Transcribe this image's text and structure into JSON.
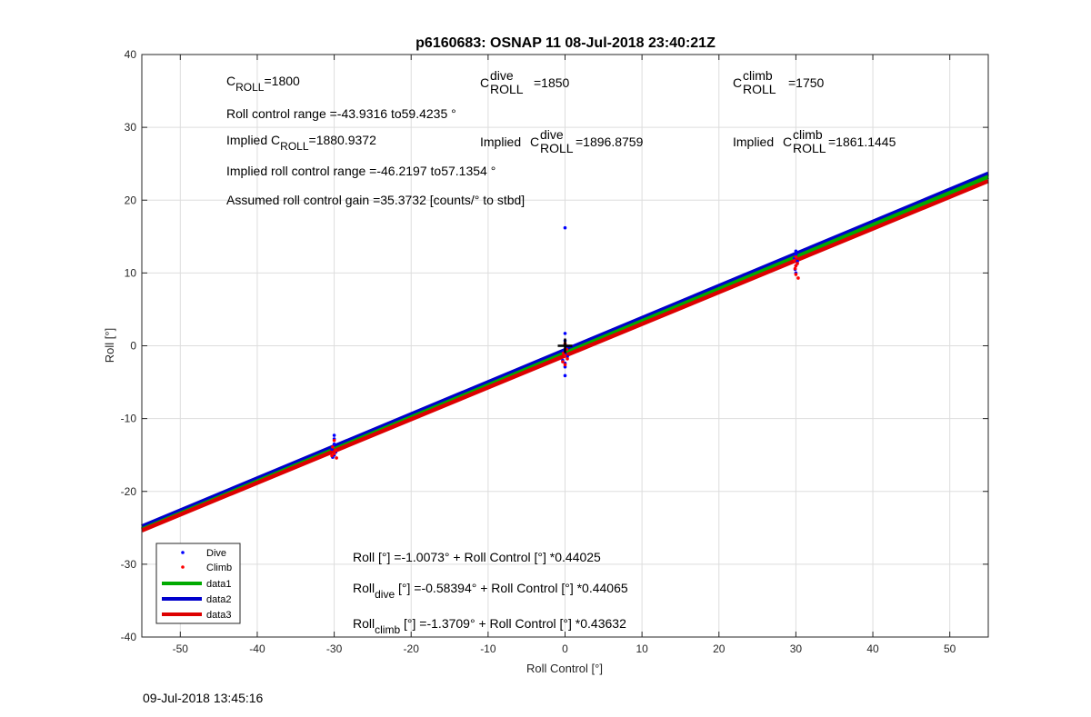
{
  "chart_data": {
    "type": "scatter",
    "title": "p6160683: OSNAP 11 08-Jul-2018 23:40:21Z",
    "xlabel": "Roll Control [°]",
    "ylabel": "Roll [°]",
    "xlim": [
      -55,
      55
    ],
    "ylim": [
      -40,
      40
    ],
    "xticks": [
      -50,
      -40,
      -30,
      -20,
      -10,
      0,
      10,
      20,
      30,
      40,
      50
    ],
    "yticks": [
      -40,
      -30,
      -20,
      -10,
      0,
      10,
      20,
      30,
      40
    ],
    "grid": true,
    "legend_position": "bottom-left",
    "series": [
      {
        "name": "Dive",
        "kind": "points",
        "color": "#0000ff",
        "points": [
          [
            -30,
            -12.3
          ],
          [
            -30,
            -12.8
          ],
          [
            -30,
            -13.5
          ],
          [
            -30.3,
            -14.2
          ],
          [
            -29.8,
            -14.6
          ],
          [
            -30,
            -15.0
          ],
          [
            -30.2,
            -15.3
          ],
          [
            0,
            16.2
          ],
          [
            0,
            1.7
          ],
          [
            0,
            0.7
          ],
          [
            0,
            0.2
          ],
          [
            0.2,
            -0.3
          ],
          [
            -0.2,
            -0.7
          ],
          [
            0,
            -1.1
          ],
          [
            0.3,
            -1.5
          ],
          [
            -0.3,
            -2.0
          ],
          [
            0,
            -2.4
          ],
          [
            0,
            -2.9
          ],
          [
            0,
            -4.1
          ],
          [
            30,
            13.0
          ],
          [
            30,
            12.5
          ],
          [
            29.8,
            12.0
          ],
          [
            30.2,
            11.6
          ],
          [
            30,
            11.0
          ],
          [
            29.9,
            10.5
          ],
          [
            30,
            10.0
          ]
        ]
      },
      {
        "name": "Climb",
        "kind": "points",
        "color": "#ff0000",
        "points": [
          [
            -30,
            -13.0
          ],
          [
            -30.2,
            -13.9
          ],
          [
            -29.8,
            -14.4
          ],
          [
            -30,
            -14.8
          ],
          [
            -30.3,
            -15.1
          ],
          [
            -29.7,
            -15.4
          ],
          [
            0,
            0.3
          ],
          [
            0.2,
            -0.5
          ],
          [
            -0.2,
            -1.0
          ],
          [
            0,
            -1.4
          ],
          [
            0.3,
            -1.8
          ],
          [
            -0.3,
            -2.2
          ],
          [
            0,
            -2.6
          ],
          [
            30,
            12.2
          ],
          [
            29.8,
            11.7
          ],
          [
            30.2,
            11.3
          ],
          [
            30,
            11.0
          ],
          [
            29.9,
            10.6
          ],
          [
            30,
            9.8
          ],
          [
            30.3,
            9.3
          ]
        ]
      },
      {
        "name": "data1",
        "kind": "line",
        "color": "#00aa00",
        "intercept": -1.0073,
        "slope": 0.44025
      },
      {
        "name": "data2",
        "kind": "line",
        "color": "#0000cc",
        "intercept": -0.58394,
        "slope": 0.44065
      },
      {
        "name": "data3",
        "kind": "line",
        "color": "#dd0000",
        "intercept": -1.3709,
        "slope": 0.43632
      }
    ],
    "center_marker": {
      "x": 0,
      "y": 0,
      "symbol": "+"
    },
    "annotations": {
      "c_roll": "=1800",
      "c_roll_dive": "=1850",
      "c_roll_climb": "=1750",
      "roll_control_range": "Roll control range =-43.9316 to59.4235 °",
      "implied_c_roll": "=1880.9372",
      "implied_c_roll_dive": "=1896.8759",
      "implied_c_roll_climb": "=1861.1445",
      "implied_range": "Implied roll control range =-46.2197 to57.1354 °",
      "gain": "Assumed roll control gain =35.3732 [counts/° to stbd]",
      "eq_all": "Roll [°] =-1.0073° + Roll Control [°] *0.44025",
      "eq_dive": "[°] =-0.58394° + Roll Control [°] *0.44065",
      "eq_climb": "[°] =-1.3709° + Roll Control [°] *0.43632"
    },
    "labels": {
      "c": "C",
      "roll_sub": "ROLL",
      "dive_sup": "dive",
      "climb_sup": "climb",
      "implied": "Implied",
      "roll": "Roll",
      "dive_sub": "dive",
      "climb_sub": "climb"
    }
  },
  "timestamp": "09-Jul-2018 13:45:16"
}
